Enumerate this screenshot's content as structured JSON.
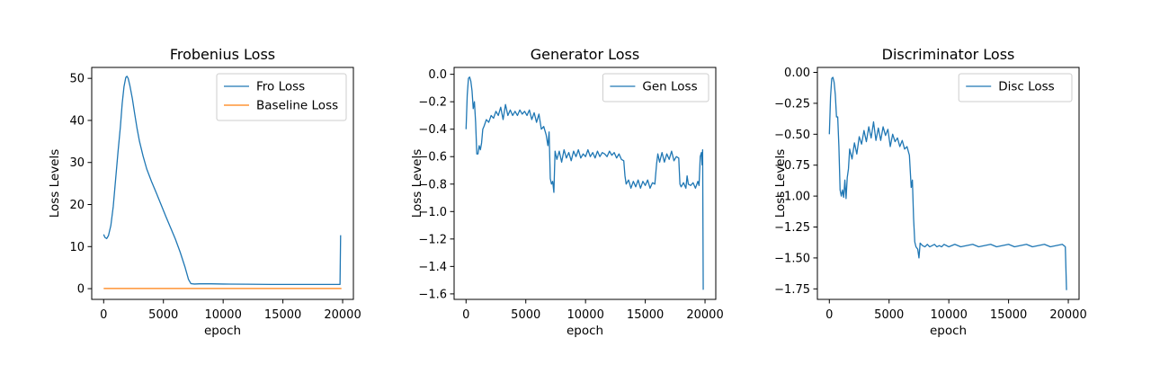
{
  "chart_data": [
    {
      "type": "line",
      "title": "Frobenius Loss",
      "xlabel": "epoch",
      "ylabel": "Loss Levels",
      "xlim": [
        -1000,
        20900
      ],
      "ylim": [
        -2.55,
        52.6
      ],
      "xticks": [
        0,
        5000,
        10000,
        15000,
        20000
      ],
      "xtick_labels": [
        "0",
        "5000",
        "10000",
        "15000",
        "20000"
      ],
      "yticks": [
        0,
        10,
        20,
        30,
        40,
        50
      ],
      "ytick_labels": [
        "0",
        "10",
        "20",
        "30",
        "40",
        "50"
      ],
      "grid": false,
      "legend_position": "upper right",
      "series": [
        {
          "name": "Fro Loss",
          "color": "#1f77b4",
          "points": [
            [
              0,
              12.9
            ],
            [
              100,
              12.2
            ],
            [
              250,
              11.9
            ],
            [
              400,
              12.6
            ],
            [
              600,
              15.0
            ],
            [
              800,
              19.5
            ],
            [
              1000,
              26.0
            ],
            [
              1200,
              32.5
            ],
            [
              1400,
              38.5
            ],
            [
              1550,
              44.0
            ],
            [
              1700,
              48.0
            ],
            [
              1850,
              50.2
            ],
            [
              1950,
              50.5
            ],
            [
              2050,
              50.0
            ],
            [
              2200,
              48.2
            ],
            [
              2400,
              45.2
            ],
            [
              2600,
              41.5
            ],
            [
              2800,
              38.0
            ],
            [
              3000,
              35.0
            ],
            [
              3300,
              31.5
            ],
            [
              3600,
              28.5
            ],
            [
              4000,
              25.5
            ],
            [
              4400,
              22.8
            ],
            [
              4800,
              20.0
            ],
            [
              5200,
              17.2
            ],
            [
              5600,
              14.5
            ],
            [
              6000,
              11.8
            ],
            [
              6400,
              8.7
            ],
            [
              6800,
              5.2
            ],
            [
              7100,
              2.2
            ],
            [
              7300,
              1.2
            ],
            [
              7600,
              1.1
            ],
            [
              8000,
              1.15
            ],
            [
              9000,
              1.15
            ],
            [
              10000,
              1.1
            ],
            [
              12000,
              1.05
            ],
            [
              14000,
              1.0
            ],
            [
              16000,
              1.0
            ],
            [
              18000,
              1.0
            ],
            [
              19700,
              1.0
            ],
            [
              19780,
              1.0
            ],
            [
              19830,
              12.7
            ]
          ]
        },
        {
          "name": "Baseline Loss",
          "color": "#ff7f0e",
          "points": [
            [
              0,
              0.05
            ],
            [
              19900,
              0.05
            ]
          ]
        }
      ]
    },
    {
      "type": "line",
      "title": "Generator Loss",
      "xlabel": "epoch",
      "ylabel": "Loss Levels",
      "xlim": [
        -1000,
        20900
      ],
      "ylim": [
        -1.64,
        0.05
      ],
      "xticks": [
        0,
        5000,
        10000,
        15000,
        20000
      ],
      "xtick_labels": [
        "0",
        "5000",
        "10000",
        "15000",
        "20000"
      ],
      "yticks": [
        0.0,
        -0.2,
        -0.4,
        -0.6,
        -0.8,
        -1.0,
        -1.2,
        -1.4,
        -1.6
      ],
      "ytick_labels": [
        "0.0",
        "−0.2",
        "−0.4",
        "−0.6",
        "−0.8",
        "−1.0",
        "−1.2",
        "−1.4",
        "−1.6"
      ],
      "grid": false,
      "legend_position": "upper right",
      "series": [
        {
          "name": "Gen Loss",
          "color": "#1f77b4",
          "points": [
            [
              0,
              -0.4
            ],
            [
              100,
              -0.15
            ],
            [
              200,
              -0.03
            ],
            [
              300,
              -0.02
            ],
            [
              400,
              -0.05
            ],
            [
              500,
              -0.12
            ],
            [
              600,
              -0.25
            ],
            [
              700,
              -0.2
            ],
            [
              800,
              -0.35
            ],
            [
              900,
              -0.58
            ],
            [
              1000,
              -0.58
            ],
            [
              1100,
              -0.52
            ],
            [
              1200,
              -0.55
            ],
            [
              1300,
              -0.5
            ],
            [
              1400,
              -0.4
            ],
            [
              1500,
              -0.38
            ],
            [
              1700,
              -0.33
            ],
            [
              1900,
              -0.35
            ],
            [
              2100,
              -0.3
            ],
            [
              2300,
              -0.32
            ],
            [
              2500,
              -0.27
            ],
            [
              2700,
              -0.3
            ],
            [
              2900,
              -0.24
            ],
            [
              3100,
              -0.33
            ],
            [
              3300,
              -0.22
            ],
            [
              3500,
              -0.3
            ],
            [
              3700,
              -0.26
            ],
            [
              3900,
              -0.3
            ],
            [
              4100,
              -0.27
            ],
            [
              4300,
              -0.3
            ],
            [
              4500,
              -0.26
            ],
            [
              4700,
              -0.29
            ],
            [
              4900,
              -0.27
            ],
            [
              5100,
              -0.3
            ],
            [
              5300,
              -0.26
            ],
            [
              5500,
              -0.33
            ],
            [
              5700,
              -0.28
            ],
            [
              5900,
              -0.35
            ],
            [
              6100,
              -0.29
            ],
            [
              6300,
              -0.4
            ],
            [
              6500,
              -0.38
            ],
            [
              6700,
              -0.44
            ],
            [
              6850,
              -0.52
            ],
            [
              6950,
              -0.42
            ],
            [
              7050,
              -0.76
            ],
            [
              7150,
              -0.8
            ],
            [
              7250,
              -0.78
            ],
            [
              7350,
              -0.86
            ],
            [
              7450,
              -0.56
            ],
            [
              7600,
              -0.62
            ],
            [
              7800,
              -0.56
            ],
            [
              8000,
              -0.64
            ],
            [
              8200,
              -0.55
            ],
            [
              8400,
              -0.61
            ],
            [
              8600,
              -0.57
            ],
            [
              8800,
              -0.63
            ],
            [
              9000,
              -0.56
            ],
            [
              9200,
              -0.6
            ],
            [
              9400,
              -0.55
            ],
            [
              9600,
              -0.61
            ],
            [
              9800,
              -0.58
            ],
            [
              10000,
              -0.6
            ],
            [
              10200,
              -0.55
            ],
            [
              10400,
              -0.6
            ],
            [
              10600,
              -0.57
            ],
            [
              10800,
              -0.61
            ],
            [
              11000,
              -0.56
            ],
            [
              11200,
              -0.6
            ],
            [
              11400,
              -0.57
            ],
            [
              11600,
              -0.58
            ],
            [
              11800,
              -0.6
            ],
            [
              12000,
              -0.56
            ],
            [
              12200,
              -0.59
            ],
            [
              12400,
              -0.57
            ],
            [
              12600,
              -0.61
            ],
            [
              12800,
              -0.58
            ],
            [
              13000,
              -0.62
            ],
            [
              13200,
              -0.63
            ],
            [
              13300,
              -0.74
            ],
            [
              13400,
              -0.8
            ],
            [
              13600,
              -0.77
            ],
            [
              13800,
              -0.83
            ],
            [
              14000,
              -0.78
            ],
            [
              14200,
              -0.82
            ],
            [
              14400,
              -0.77
            ],
            [
              14600,
              -0.83
            ],
            [
              14800,
              -0.78
            ],
            [
              15000,
              -0.81
            ],
            [
              15200,
              -0.77
            ],
            [
              15400,
              -0.83
            ],
            [
              15600,
              -0.79
            ],
            [
              15800,
              -0.8
            ],
            [
              15950,
              -0.65
            ],
            [
              16050,
              -0.58
            ],
            [
              16200,
              -0.64
            ],
            [
              16400,
              -0.57
            ],
            [
              16600,
              -0.64
            ],
            [
              16800,
              -0.58
            ],
            [
              17000,
              -0.62
            ],
            [
              17200,
              -0.56
            ],
            [
              17400,
              -0.63
            ],
            [
              17600,
              -0.6
            ],
            [
              17800,
              -0.61
            ],
            [
              17900,
              -0.8
            ],
            [
              18000,
              -0.82
            ],
            [
              18200,
              -0.79
            ],
            [
              18400,
              -0.83
            ],
            [
              18500,
              -0.74
            ],
            [
              18600,
              -0.8
            ],
            [
              18800,
              -0.81
            ],
            [
              19000,
              -0.79
            ],
            [
              19200,
              -0.83
            ],
            [
              19400,
              -0.78
            ],
            [
              19500,
              -0.81
            ],
            [
              19600,
              -0.6
            ],
            [
              19700,
              -0.57
            ],
            [
              19750,
              -0.66
            ],
            [
              19800,
              -0.55
            ],
            [
              19850,
              -1.57
            ]
          ]
        }
      ]
    },
    {
      "type": "line",
      "title": "Discriminator Loss",
      "xlabel": "epoch",
      "ylabel": "Loss Levels",
      "xlim": [
        -1000,
        20900
      ],
      "ylim": [
        -1.835,
        0.04
      ],
      "xticks": [
        0,
        5000,
        10000,
        15000,
        20000
      ],
      "xtick_labels": [
        "0",
        "5000",
        "10000",
        "15000",
        "20000"
      ],
      "yticks": [
        0.0,
        -0.25,
        -0.5,
        -0.75,
        -1.0,
        -1.25,
        -1.5,
        -1.75
      ],
      "ytick_labels": [
        "0.00",
        "−0.25",
        "−0.50",
        "−0.75",
        "−1.00",
        "−1.25",
        "−1.50",
        "−1.75"
      ],
      "grid": false,
      "legend_position": "upper right",
      "series": [
        {
          "name": "Disc Loss",
          "color": "#1f77b4",
          "points": [
            [
              0,
              -0.5
            ],
            [
              100,
              -0.2
            ],
            [
              200,
              -0.05
            ],
            [
              300,
              -0.04
            ],
            [
              400,
              -0.08
            ],
            [
              500,
              -0.18
            ],
            [
              600,
              -0.36
            ],
            [
              700,
              -0.36
            ],
            [
              800,
              -0.6
            ],
            [
              900,
              -0.95
            ],
            [
              1000,
              -1.0
            ],
            [
              1100,
              -0.95
            ],
            [
              1200,
              -1.01
            ],
            [
              1300,
              -0.87
            ],
            [
              1400,
              -1.02
            ],
            [
              1500,
              -0.85
            ],
            [
              1600,
              -0.78
            ],
            [
              1700,
              -0.62
            ],
            [
              1900,
              -0.7
            ],
            [
              2100,
              -0.57
            ],
            [
              2300,
              -0.66
            ],
            [
              2500,
              -0.52
            ],
            [
              2700,
              -0.58
            ],
            [
              2900,
              -0.47
            ],
            [
              3100,
              -0.56
            ],
            [
              3300,
              -0.44
            ],
            [
              3500,
              -0.53
            ],
            [
              3700,
              -0.4
            ],
            [
              3900,
              -0.55
            ],
            [
              4100,
              -0.45
            ],
            [
              4300,
              -0.55
            ],
            [
              4500,
              -0.44
            ],
            [
              4700,
              -0.51
            ],
            [
              4900,
              -0.46
            ],
            [
              5100,
              -0.6
            ],
            [
              5300,
              -0.5
            ],
            [
              5500,
              -0.56
            ],
            [
              5700,
              -0.53
            ],
            [
              5900,
              -0.6
            ],
            [
              6100,
              -0.55
            ],
            [
              6300,
              -0.62
            ],
            [
              6500,
              -0.6
            ],
            [
              6700,
              -0.67
            ],
            [
              6850,
              -0.93
            ],
            [
              6950,
              -0.87
            ],
            [
              7050,
              -1.18
            ],
            [
              7150,
              -1.37
            ],
            [
              7250,
              -1.41
            ],
            [
              7400,
              -1.43
            ],
            [
              7500,
              -1.5
            ],
            [
              7600,
              -1.38
            ],
            [
              7800,
              -1.4
            ],
            [
              8000,
              -1.41
            ],
            [
              8200,
              -1.39
            ],
            [
              8400,
              -1.41
            ],
            [
              8600,
              -1.4
            ],
            [
              8800,
              -1.39
            ],
            [
              9000,
              -1.41
            ],
            [
              9200,
              -1.4
            ],
            [
              9400,
              -1.41
            ],
            [
              9600,
              -1.39
            ],
            [
              9800,
              -1.4
            ],
            [
              10000,
              -1.41
            ],
            [
              10500,
              -1.39
            ],
            [
              11000,
              -1.41
            ],
            [
              11500,
              -1.4
            ],
            [
              12000,
              -1.39
            ],
            [
              12500,
              -1.41
            ],
            [
              13000,
              -1.4
            ],
            [
              13500,
              -1.39
            ],
            [
              14000,
              -1.41
            ],
            [
              14500,
              -1.4
            ],
            [
              15000,
              -1.39
            ],
            [
              15500,
              -1.41
            ],
            [
              16000,
              -1.4
            ],
            [
              16500,
              -1.39
            ],
            [
              17000,
              -1.41
            ],
            [
              17500,
              -1.4
            ],
            [
              18000,
              -1.39
            ],
            [
              18500,
              -1.41
            ],
            [
              19000,
              -1.4
            ],
            [
              19500,
              -1.39
            ],
            [
              19750,
              -1.41
            ],
            [
              19850,
              -1.76
            ]
          ]
        }
      ]
    }
  ]
}
